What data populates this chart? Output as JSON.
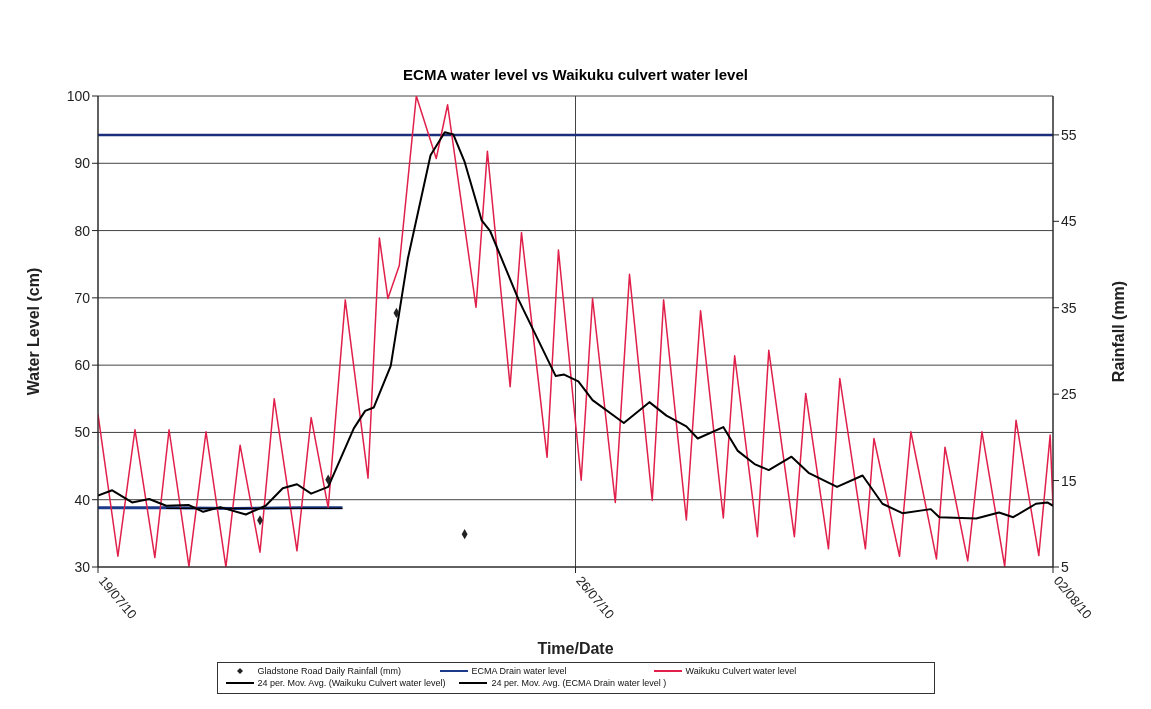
{
  "chart_data": {
    "type": "line",
    "title": "ECMA water level vs Waikuku culvert water level",
    "xlabel": "Time/Date",
    "ylabel": "Water Level (cm)",
    "y2label": "Rainfall (mm)",
    "xlim": [
      "2010-07-19T00:00",
      "2010-08-02T00:00"
    ],
    "xticks": [
      {
        "value": "2010-07-19",
        "label": "19/07/10"
      },
      {
        "value": "2010-07-26",
        "label": "26/07/10"
      },
      {
        "value": "2010-08-02",
        "label": "02/08/10"
      }
    ],
    "ylim": [
      30,
      100
    ],
    "yticks": [
      30,
      40,
      50,
      60,
      70,
      80,
      90,
      100
    ],
    "y2lim": [
      5,
      59.5
    ],
    "y2ticks": [
      5,
      15,
      25,
      35,
      45,
      55
    ],
    "grid": true,
    "legend": "bottom",
    "line_style": "solid",
    "ref_lines": [
      {
        "axis": "y2",
        "value": 55,
        "color": "#1c2f7a"
      }
    ],
    "series": [
      {
        "name": "Gladstone Road Daily Rainfall (mm)",
        "type": "scatter",
        "axis": "y2",
        "marker": "diamond",
        "color": "#222222",
        "x": [
          "2010-07-21T09:00",
          "2010-07-22T09:00",
          "2010-07-23T09:00",
          "2010-07-24T09:00"
        ],
        "values": [
          10.4,
          15.1,
          34.4,
          8.8
        ]
      },
      {
        "name": "ECMA Drain water level",
        "marker": "none",
        "color": "#1c3a8a",
        "x": [
          "2010-07-19T00:00",
          "2010-07-20T00:00",
          "2010-07-21T00:00",
          "2010-07-22T00:00",
          "2010-07-22T14:00"
        ],
        "values": [
          38.8,
          38.8,
          38.7,
          38.8,
          38.8
        ]
      },
      {
        "name": "Waikuku Culvert water level",
        "marker": "none",
        "color": "#e0204a",
        "x": [
          "2010-07-19T00:00",
          "2010-07-19T07:00",
          "2010-07-19T13:00",
          "2010-07-19T20:00",
          "2010-07-20T01:00",
          "2010-07-20T08:00",
          "2010-07-20T14:00",
          "2010-07-20T21:00",
          "2010-07-21T02:00",
          "2010-07-21T09:00",
          "2010-07-21T14:00",
          "2010-07-21T22:00",
          "2010-07-22T03:00",
          "2010-07-22T09:00",
          "2010-07-22T15:00",
          "2010-07-22T23:00",
          "2010-07-23T03:00",
          "2010-07-23T06:00",
          "2010-07-23T10:00",
          "2010-07-23T16:00",
          "2010-07-23T23:00",
          "2010-07-24T03:00",
          "2010-07-24T13:00",
          "2010-07-24T17:00",
          "2010-07-25T01:00",
          "2010-07-25T05:00",
          "2010-07-25T14:00",
          "2010-07-25T18:00",
          "2010-07-26T02:00",
          "2010-07-26T06:00",
          "2010-07-26T14:00",
          "2010-07-26T19:00",
          "2010-07-27T03:00",
          "2010-07-27T07:00",
          "2010-07-27T15:00",
          "2010-07-27T20:00",
          "2010-07-28T04:00",
          "2010-07-28T08:00",
          "2010-07-28T16:00",
          "2010-07-28T20:00",
          "2010-07-29T05:00",
          "2010-07-29T09:00",
          "2010-07-29T17:00",
          "2010-07-29T21:00",
          "2010-07-30T06:00",
          "2010-07-30T09:00",
          "2010-07-30T18:00",
          "2010-07-30T22:00",
          "2010-07-31T07:00",
          "2010-07-31T10:00",
          "2010-07-31T18:00",
          "2010-07-31T23:00",
          "2010-08-01T07:00",
          "2010-08-01T11:00",
          "2010-08-01T19:00",
          "2010-08-01T23:00",
          "2010-08-02T00:00"
        ],
        "values": [
          52.7,
          31.6,
          50.4,
          31.4,
          50.4,
          30.1,
          50.1,
          30,
          48.1,
          32.2,
          55,
          32.4,
          52.2,
          38.8,
          69.7,
          43.2,
          78.9,
          69.9,
          74.8,
          100,
          90.7,
          98.7,
          68.6,
          91.8,
          56.8,
          79.7,
          46.3,
          77.1,
          42.9,
          69.9,
          39.6,
          73.5,
          39.9,
          69.7,
          37,
          68.1,
          37.3,
          61.4,
          34.5,
          62.2,
          34.5,
          55.8,
          32.7,
          58,
          32.7,
          49.1,
          31.6,
          50.1,
          31.2,
          47.8,
          30.9,
          50.1,
          30.1,
          51.8,
          31.7,
          49.6,
          39
        ]
      },
      {
        "name": "24 per. Mov. Avg. (Waikuku Culvert water level)",
        "marker": "none",
        "color": "#000000",
        "x": [
          "2010-07-19T00:00",
          "2010-07-19T05:00",
          "2010-07-19T12:00",
          "2010-07-19T18:00",
          "2010-07-20T00:00",
          "2010-07-20T08:00",
          "2010-07-20T13:00",
          "2010-07-20T19:00",
          "2010-07-21T04:00",
          "2010-07-21T11:00",
          "2010-07-21T17:00",
          "2010-07-21T22:00",
          "2010-07-22T03:00",
          "2010-07-22T09:00",
          "2010-07-22T18:00",
          "2010-07-22T22:00",
          "2010-07-23T01:00",
          "2010-07-23T07:00",
          "2010-07-23T13:00",
          "2010-07-23T21:00",
          "2010-07-24T02:00",
          "2010-07-24T05:00",
          "2010-07-24T09:00",
          "2010-07-24T15:00",
          "2010-07-24T18:00",
          "2010-07-25T00:00",
          "2010-07-25T04:00",
          "2010-07-25T17:00",
          "2010-07-25T20:00",
          "2010-07-26T01:00",
          "2010-07-26T06:00",
          "2010-07-26T17:00",
          "2010-07-27T02:00",
          "2010-07-27T08:00",
          "2010-07-27T15:00",
          "2010-07-27T19:00",
          "2010-07-28T04:00",
          "2010-07-28T09:00",
          "2010-07-28T15:00",
          "2010-07-28T20:00",
          "2010-07-29T04:00",
          "2010-07-29T10:00",
          "2010-07-29T20:00",
          "2010-07-30T05:00",
          "2010-07-30T12:00",
          "2010-07-30T19:00",
          "2010-07-31T05:00",
          "2010-07-31T08:00",
          "2010-07-31T21:00",
          "2010-08-01T05:00",
          "2010-08-01T10:00",
          "2010-08-01T18:00",
          "2010-08-01T22:00",
          "2010-08-02T00:00"
        ],
        "values": [
          40.6,
          41.4,
          39.6,
          40.1,
          39.1,
          39.2,
          38.2,
          38.9,
          37.8,
          39.1,
          41.7,
          42.3,
          40.9,
          41.9,
          50.6,
          53.2,
          53.7,
          59.9,
          75.8,
          91.2,
          94.6,
          94.3,
          90.2,
          81.5,
          79.9,
          73.8,
          69.7,
          58.4,
          58.6,
          57.6,
          54.8,
          51.4,
          54.5,
          52.5,
          50.9,
          49.1,
          50.8,
          47.3,
          45.3,
          44.4,
          46.4,
          44,
          41.9,
          43.6,
          39.4,
          38,
          38.6,
          37.4,
          37.2,
          38.1,
          37.4,
          39.4,
          39.6,
          39.1
        ]
      },
      {
        "name": "24 per. Mov. Avg. (ECMA Drain water level )",
        "marker": "none",
        "color": "#000000",
        "x": [
          "2010-07-20T00:00",
          "2010-07-22T14:00"
        ],
        "values": [
          38.7,
          38.7
        ]
      }
    ]
  }
}
